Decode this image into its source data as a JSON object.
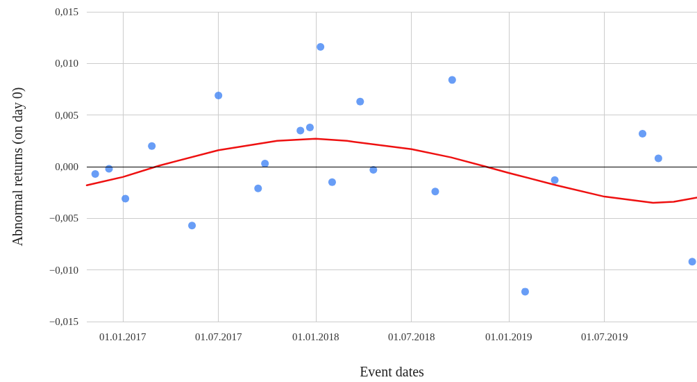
{
  "chart_data": {
    "type": "scatter",
    "xlabel": "Event dates",
    "ylabel": "Abnormal returns (on day 0)",
    "xlim": [
      "2016-10-25",
      "2019-12-23"
    ],
    "xticks": [
      {
        "value": "2017-01-01",
        "label": "01.01.2017"
      },
      {
        "value": "2017-07-01",
        "label": "01.07.2017"
      },
      {
        "value": "2018-01-01",
        "label": "01.01.2018"
      },
      {
        "value": "2018-07-01",
        "label": "01.07.2018"
      },
      {
        "value": "2019-01-01",
        "label": "01.01.2019"
      },
      {
        "value": "2019-07-01",
        "label": "01.07.2019"
      }
    ],
    "ylim": [
      -0.015,
      0.015
    ],
    "yticks": [
      {
        "value": -0.015,
        "label": "−0,015"
      },
      {
        "value": -0.01,
        "label": "−0,010"
      },
      {
        "value": -0.005,
        "label": "−0,005"
      },
      {
        "value": 0,
        "label": "0,000"
      },
      {
        "value": 0.005,
        "label": "0,005"
      },
      {
        "value": 0.01,
        "label": "0,010"
      },
      {
        "value": 0.015,
        "label": "0,015"
      }
    ],
    "grid": true,
    "marker": "circle",
    "ref_lines": [
      {
        "axis": "y",
        "value": 0,
        "color": "#000000"
      }
    ],
    "series": [
      {
        "color": "#4285f4",
        "x": [
          "2016-11-10",
          "2016-12-06",
          "2017-01-06",
          "2017-02-25",
          "2017-05-12",
          "2017-07-01",
          "2017-09-14",
          "2017-09-27",
          "2017-12-03",
          "2017-12-21",
          "2018-01-10",
          "2018-02-01",
          "2018-03-26",
          "2018-04-20",
          "2018-08-15",
          "2018-09-16",
          "2019-02-01",
          "2019-03-29",
          "2019-09-11",
          "2019-10-11",
          "2019-12-14"
        ],
        "values": [
          -0.0007,
          -0.0002,
          -0.0031,
          0.002,
          -0.0057,
          0.0069,
          -0.0021,
          0.0003,
          0.0035,
          0.0038,
          0.0116,
          -0.0015,
          0.0063,
          -0.0003,
          -0.0024,
          0.0084,
          -0.0121,
          -0.0013,
          0.0032,
          0.0008,
          -0.0092
        ]
      },
      {
        "type": "line",
        "color": "#ee1111",
        "marker": "none",
        "x": [
          "2016-10-25",
          "2017-01-01",
          "2017-03-11",
          "2017-07-01",
          "2017-10-20",
          "2018-01-01",
          "2018-03-01",
          "2018-07-01",
          "2018-09-14",
          "2018-11-19",
          "2019-01-01",
          "2019-04-01",
          "2019-07-01",
          "2019-10-01",
          "2019-11-09",
          "2019-12-23"
        ],
        "values": [
          -0.0018,
          -0.001,
          0.0001,
          0.0016,
          0.0025,
          0.0027,
          0.0025,
          0.0017,
          0.0009,
          0.0,
          -0.0006,
          -0.0018,
          -0.0029,
          -0.0035,
          -0.0034,
          -0.003
        ]
      }
    ]
  }
}
